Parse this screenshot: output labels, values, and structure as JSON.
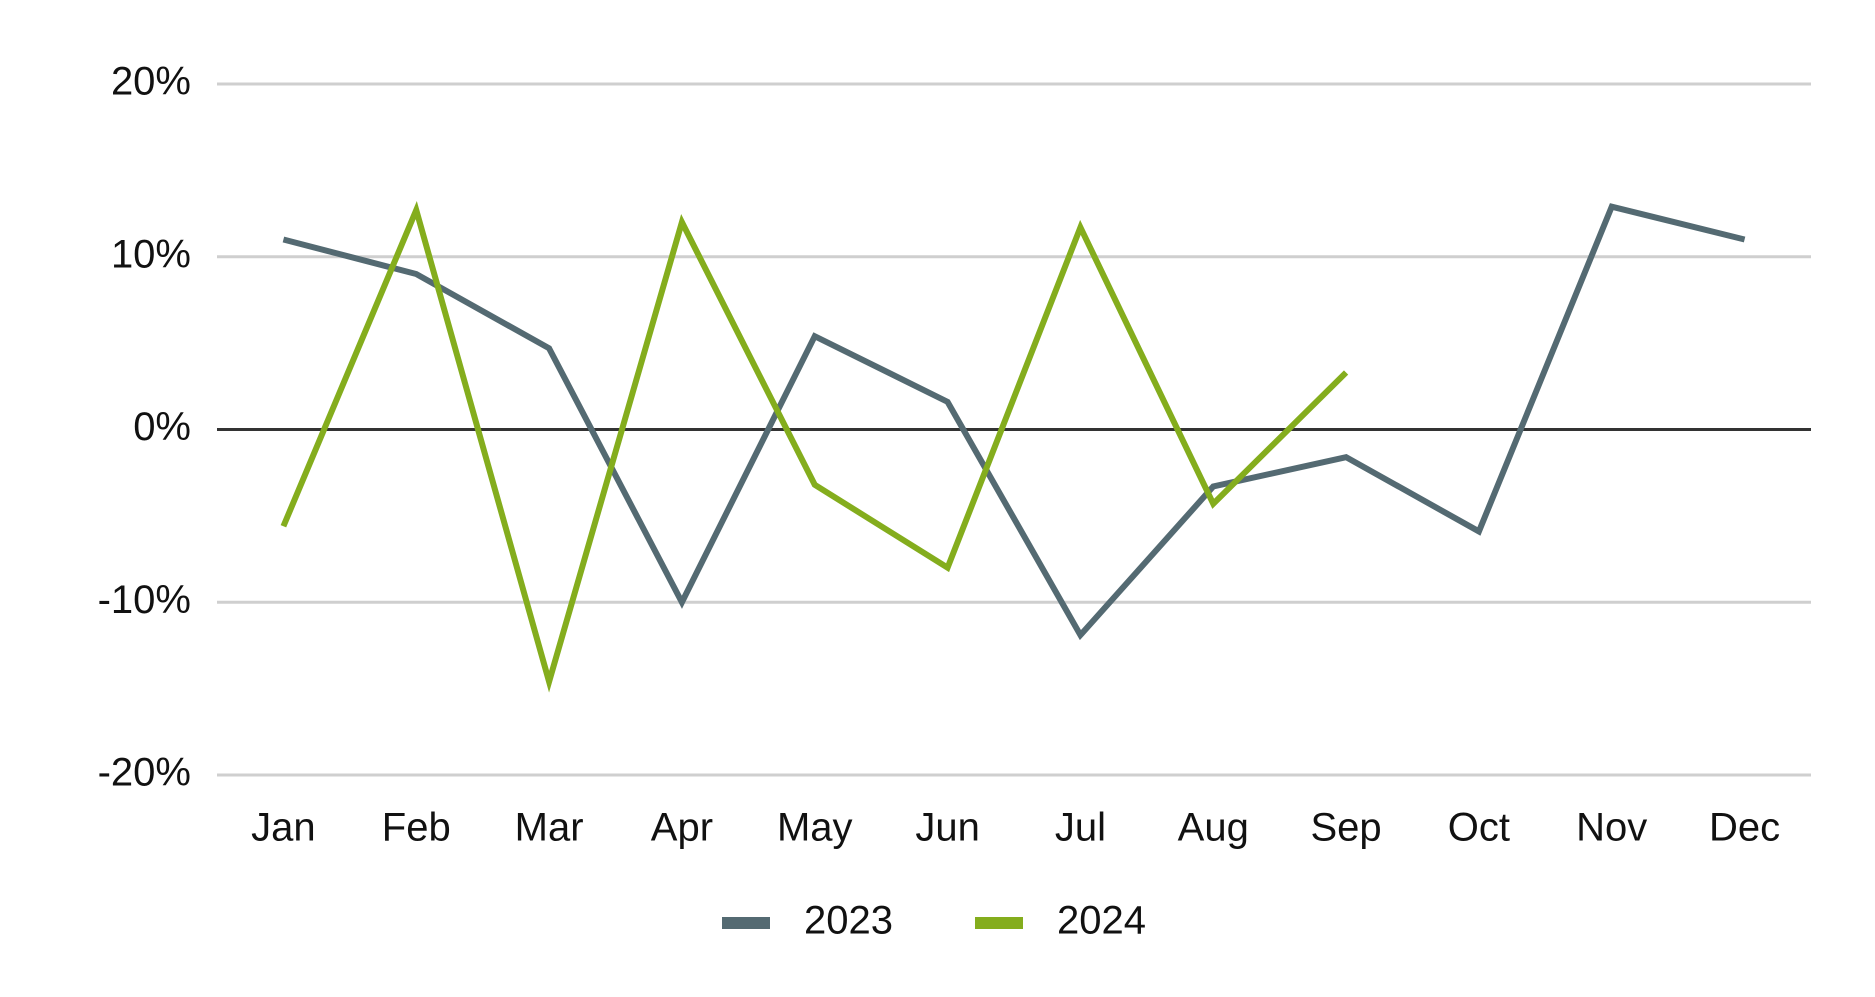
{
  "chart_data": {
    "type": "line",
    "categories": [
      "Jan",
      "Feb",
      "Mar",
      "Apr",
      "May",
      "Jun",
      "Jul",
      "Aug",
      "Sep",
      "Oct",
      "Nov",
      "Dec"
    ],
    "series": [
      {
        "name": "2023",
        "color": "#546a72",
        "values": [
          11,
          9,
          4.7,
          -10,
          5.4,
          1.6,
          -11.9,
          -3.3,
          -1.6,
          -5.9,
          12.9,
          11
        ]
      },
      {
        "name": "2024",
        "color": "#84ad1d",
        "values": [
          -5.6,
          12.7,
          -14.6,
          12,
          -3.2,
          -8,
          11.7,
          -4.3,
          3.3,
          null,
          null,
          null
        ]
      }
    ],
    "ylim": [
      -20,
      20
    ],
    "yticks": [
      {
        "value": -20,
        "label": "-20%"
      },
      {
        "value": -10,
        "label": "-10%"
      },
      {
        "value": 0,
        "label": "0%"
      },
      {
        "value": 10,
        "label": "10%"
      },
      {
        "value": 20,
        "label": "20%"
      }
    ],
    "grid": true,
    "legend": "bottom"
  }
}
